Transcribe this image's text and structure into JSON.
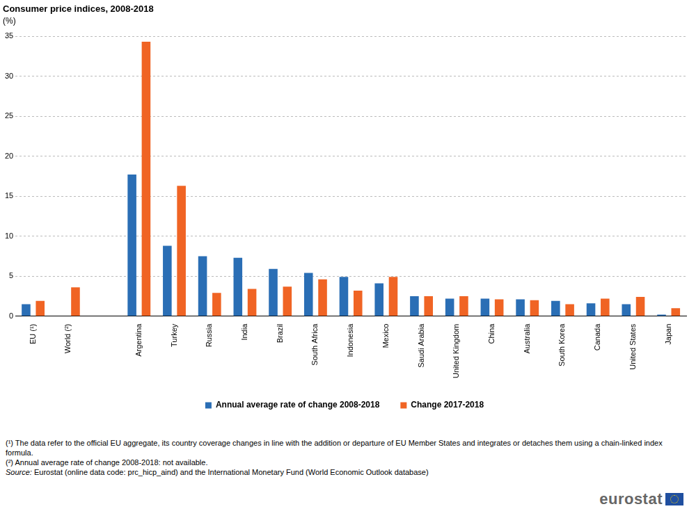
{
  "chart_data": {
    "type": "bar",
    "title": "Consumer price indices, 2008-2018",
    "subtitle": "(%)",
    "categories": [
      "EU (¹)",
      "World (²)",
      null,
      "Argentina",
      "Turkey",
      "Russia",
      "India",
      "Brazil",
      "South Africa",
      "Indonesia",
      "Mexico",
      "Saudi Arabia",
      "United Kingdom",
      "China",
      "Australia",
      "South Korea",
      "Canada",
      "United States",
      "Japan"
    ],
    "series": [
      {
        "name": "Annual average rate of change 2008-2018",
        "color": "#2a6eb5",
        "values": [
          1.5,
          null,
          null,
          17.7,
          8.8,
          7.5,
          7.3,
          5.9,
          5.4,
          4.9,
          4.1,
          2.5,
          2.2,
          2.2,
          2.1,
          1.9,
          1.6,
          1.5,
          0.2
        ]
      },
      {
        "name": "Change 2017-2018",
        "color": "#f06424",
        "values": [
          1.9,
          3.6,
          null,
          34.3,
          16.3,
          2.9,
          3.4,
          3.7,
          4.6,
          3.2,
          4.9,
          2.5,
          2.5,
          2.1,
          2.0,
          1.5,
          2.2,
          2.4,
          1.0
        ]
      }
    ],
    "ylim": [
      0,
      35
    ],
    "yticks": [
      0,
      5,
      10,
      15,
      20,
      25,
      30,
      35
    ],
    "grid": true,
    "legend": "bottom",
    "footnotes": [
      "(¹) The data refer to the official EU aggregate, its country coverage changes in line with the addition or departure of EU Member States and integrates or detaches them using a chain-linked index formula.",
      "(²) Annual average rate of change 2008-2018: not available."
    ],
    "source": "Source: Eurostat (online data code: prc_hicp_aind) and the International Monetary Fund (World Economic Outlook database)",
    "logo": "eurostat"
  }
}
